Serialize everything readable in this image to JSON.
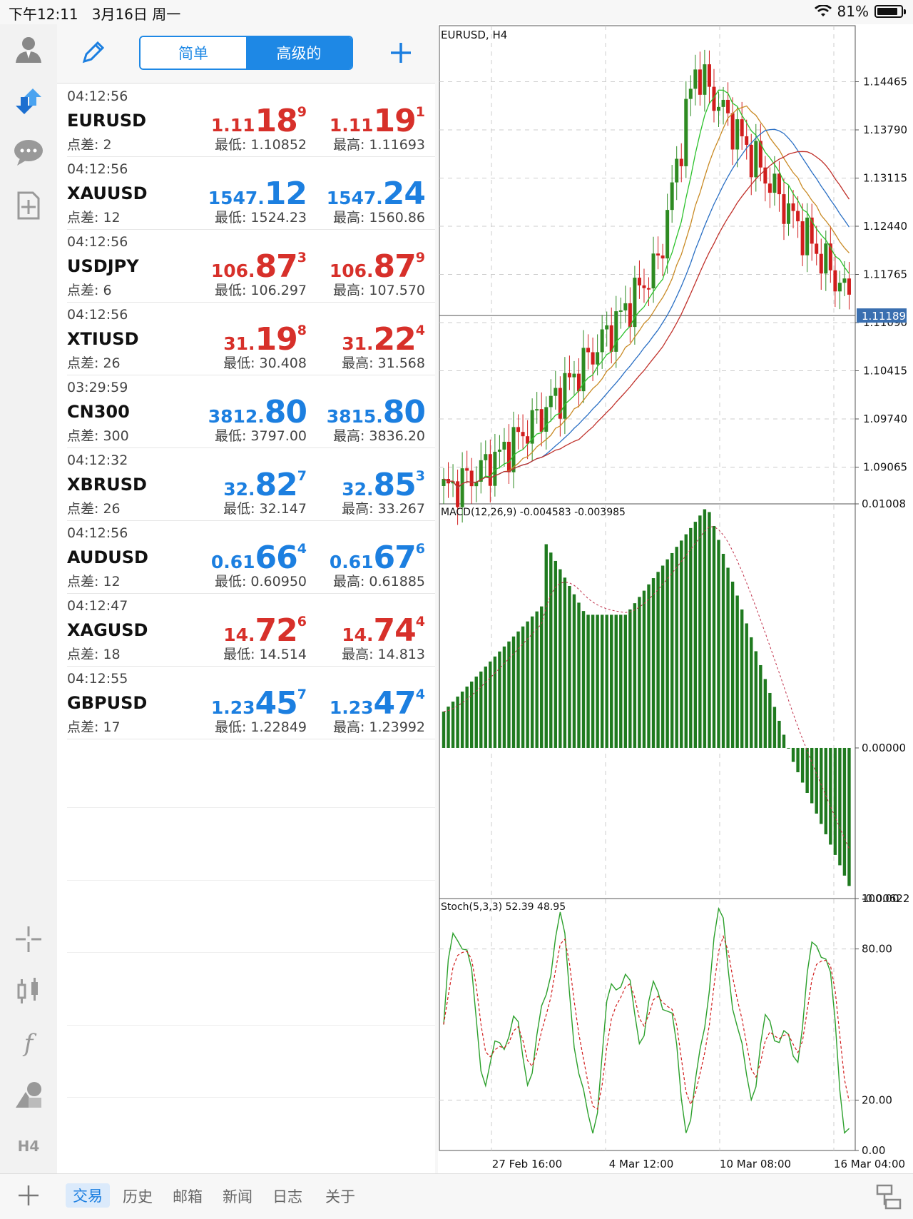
{
  "status_bar": {
    "time": "下午12:11",
    "date": "3月16日 周一",
    "battery": "81%"
  },
  "toolbar": {
    "simple_label": "简单",
    "advanced_label": "高级的"
  },
  "quotes": [
    {
      "time": "04:12:56",
      "symbol": "EURUSD",
      "spread": "点差: 2",
      "color": "red",
      "bid": {
        "small": "1.11",
        "big": "18",
        "pip": "9"
      },
      "ask": {
        "small": "1.11",
        "big": "19",
        "pip": "1"
      },
      "low": "最低: 1.10852",
      "high": "最高: 1.11693"
    },
    {
      "time": "04:12:56",
      "symbol": "XAUUSD",
      "spread": "点差: 12",
      "color": "blue",
      "bid": {
        "small": "1547.",
        "big": "12",
        "pip": ""
      },
      "ask": {
        "small": "1547.",
        "big": "24",
        "pip": ""
      },
      "low": "最低: 1524.23",
      "high": "最高: 1560.86"
    },
    {
      "time": "04:12:56",
      "symbol": "USDJPY",
      "spread": "点差: 6",
      "color": "red",
      "bid": {
        "small": "106.",
        "big": "87",
        "pip": "3"
      },
      "ask": {
        "small": "106.",
        "big": "87",
        "pip": "9"
      },
      "low": "最低: 106.297",
      "high": "最高: 107.570"
    },
    {
      "time": "04:12:56",
      "symbol": "XTIUSD",
      "spread": "点差: 26",
      "color": "red",
      "bid": {
        "small": "31.",
        "big": "19",
        "pip": "8"
      },
      "ask": {
        "small": "31.",
        "big": "22",
        "pip": "4"
      },
      "low": "最低: 30.408",
      "high": "最高: 31.568"
    },
    {
      "time": "03:29:59",
      "symbol": "CN300",
      "spread": "点差: 300",
      "color": "blue",
      "bid": {
        "small": "3812.",
        "big": "80",
        "pip": ""
      },
      "ask": {
        "small": "3815.",
        "big": "80",
        "pip": ""
      },
      "low": "最低: 3797.00",
      "high": "最高: 3836.20"
    },
    {
      "time": "04:12:32",
      "symbol": "XBRUSD",
      "spread": "点差: 26",
      "color": "blue",
      "bid": {
        "small": "32.",
        "big": "82",
        "pip": "7"
      },
      "ask": {
        "small": "32.",
        "big": "85",
        "pip": "3"
      },
      "low": "最低: 32.147",
      "high": "最高: 33.267"
    },
    {
      "time": "04:12:56",
      "symbol": "AUDUSD",
      "spread": "点差: 12",
      "color": "blue",
      "bid": {
        "small": "0.61",
        "big": "66",
        "pip": "4"
      },
      "ask": {
        "small": "0.61",
        "big": "67",
        "pip": "6"
      },
      "low": "最低: 0.60950",
      "high": "最高: 0.61885"
    },
    {
      "time": "04:12:47",
      "symbol": "XAGUSD",
      "spread": "点差: 18",
      "color": "red",
      "bid": {
        "small": "14.",
        "big": "72",
        "pip": "6"
      },
      "ask": {
        "small": "14.",
        "big": "74",
        "pip": "4"
      },
      "low": "最低: 14.514",
      "high": "最高: 14.813"
    },
    {
      "time": "04:12:55",
      "symbol": "GBPUSD",
      "spread": "点差: 17",
      "color": "blue",
      "bid": {
        "small": "1.23",
        "big": "45",
        "pip": "7"
      },
      "ask": {
        "small": "1.23",
        "big": "47",
        "pip": "4"
      },
      "low": "最低: 1.22849",
      "high": "最高: 1.23992"
    }
  ],
  "chart": {
    "symbol_label": "EURUSD, H4",
    "price_axis": [
      "1.14465",
      "1.13790",
      "1.13115",
      "1.12440",
      "1.11765",
      "1.11090",
      "1.10415",
      "1.09740",
      "1.09065"
    ],
    "current_price": "1.11189",
    "macd_label": "MACD(12,26,9) -0.004583 -0.003985",
    "macd_axis": [
      "0.01008",
      "0.00000",
      "-0.00622"
    ],
    "stoch_label": "Stoch(5,3,3) 52.39 48.95",
    "stoch_axis": [
      "100.00",
      "80.00",
      "20.00",
      "0.00"
    ],
    "time_axis": [
      "27 Feb 16:00",
      "4 Mar 12:00",
      "10 Mar 08:00",
      "16 Mar 04:00"
    ],
    "up_color": "#2e8b22",
    "down_color": "#d11d1d"
  },
  "left_rail": {
    "timeframe": "H4"
  },
  "bottom_tabs": [
    "交易",
    "历史",
    "邮箱",
    "新闻",
    "日志",
    "关于"
  ],
  "active_tab": "交易"
}
